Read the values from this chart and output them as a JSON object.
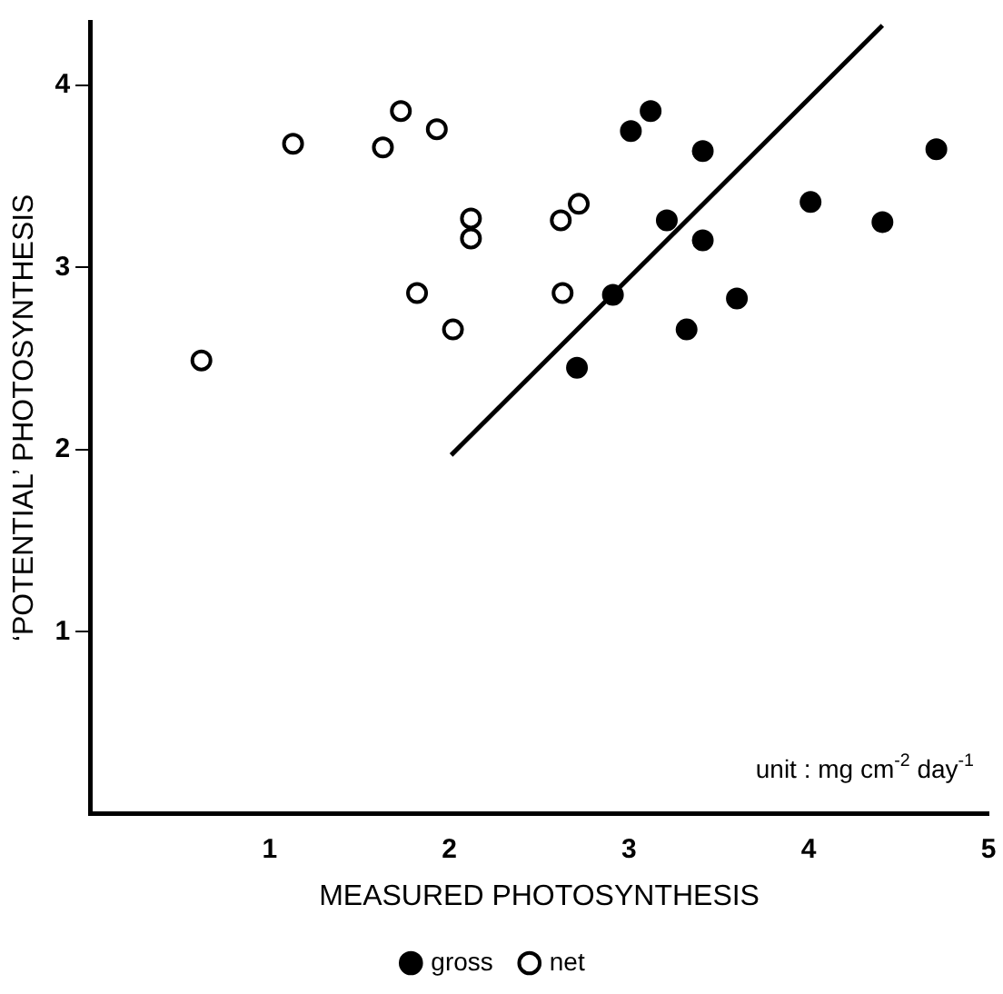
{
  "chart_data": {
    "type": "scatter",
    "xlabel": "MEASURED PHOTOSYNTHESIS",
    "ylabel": "‘POTENTIAL’ PHOTOSYNTHESIS",
    "annotations": [
      "unit : mg cm$^{-2}$ day$^{-1}$"
    ],
    "xlim": [
      0,
      5
    ],
    "ylim": [
      0,
      4.35
    ],
    "xticks": [
      1,
      2,
      3,
      4,
      5
    ],
    "yticks": [
      1,
      2,
      3,
      4
    ],
    "grid": false,
    "legend": "bottom",
    "marker": "circle",
    "series": [
      {
        "name": "gross",
        "color": "#000000",
        "x": [
          3.01,
          3.12,
          3.41,
          3.21,
          3.41,
          2.91,
          3.6,
          3.32,
          2.71,
          4.01,
          4.41,
          4.71
        ],
        "values": [
          3.75,
          3.86,
          3.64,
          3.26,
          3.15,
          2.85,
          2.83,
          2.66,
          2.45,
          3.36,
          3.25,
          3.65
        ]
      },
      {
        "name": "net",
        "color": "#ffffff",
        "x": [
          0.62,
          1.13,
          1.63,
          1.73,
          1.93,
          2.12,
          2.12,
          1.82,
          2.02,
          2.62,
          2.72,
          2.63
        ],
        "values": [
          2.49,
          3.68,
          3.66,
          3.86,
          3.76,
          3.27,
          3.16,
          2.86,
          2.66,
          3.26,
          3.35,
          2.86
        ]
      },
      {
        "type": "line",
        "color": "#000000",
        "marker": "none",
        "line_style": "solid",
        "x": [
          2.01,
          4.41
        ],
        "values": [
          1.97,
          4.33
        ]
      }
    ]
  }
}
